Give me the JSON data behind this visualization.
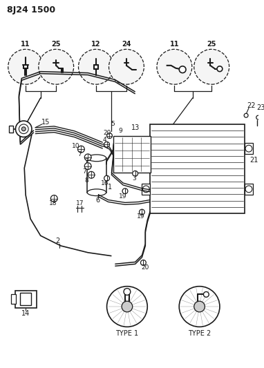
{
  "title": "8J24 1500",
  "bg": "#ffffff",
  "lc": "#1a1a1a",
  "gray": "#888888",
  "fig_w": 3.82,
  "fig_h": 5.33,
  "dpi": 100
}
